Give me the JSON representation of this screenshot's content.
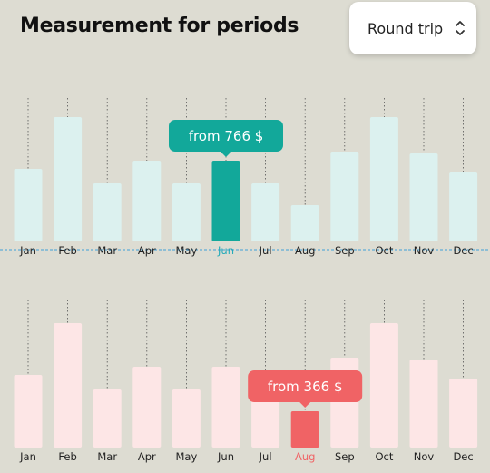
{
  "header": {
    "title": "Measurement for periods",
    "trip_type": "Round trip"
  },
  "icons": {
    "trip_select": "chevron-up-down-icon"
  },
  "colors": {
    "bg": "#dddcd2",
    "top_bar": "#dcf1ef",
    "top_active": "#12a89a",
    "bottom_bar": "#fde6e6",
    "bottom_active": "#f06365",
    "active_top_label": "#22aab8",
    "active_bottom_label": "#f06365",
    "baseline": "#3fa0d8"
  },
  "chart_data": [
    {
      "type": "bar",
      "categories": [
        "Jan",
        "Feb",
        "Mar",
        "Apr",
        "May",
        "Jun",
        "Jul",
        "Aug",
        "Sep",
        "Oct",
        "Nov",
        "Dec"
      ],
      "values": [
        80,
        137,
        64,
        89,
        64,
        89,
        64,
        40,
        99,
        137,
        97,
        76
      ],
      "highlight_index": 5,
      "tooltip": "from 766 $"
    },
    {
      "type": "bar",
      "categories": [
        "Jan",
        "Feb",
        "Mar",
        "Apr",
        "May",
        "Jun",
        "Jul",
        "Aug",
        "Sep",
        "Oct",
        "Nov",
        "Dec"
      ],
      "values": [
        80,
        137,
        64,
        89,
        64,
        89,
        64,
        40,
        99,
        137,
        97,
        76
      ],
      "highlight_index": 7,
      "tooltip": "from 366 $"
    }
  ]
}
